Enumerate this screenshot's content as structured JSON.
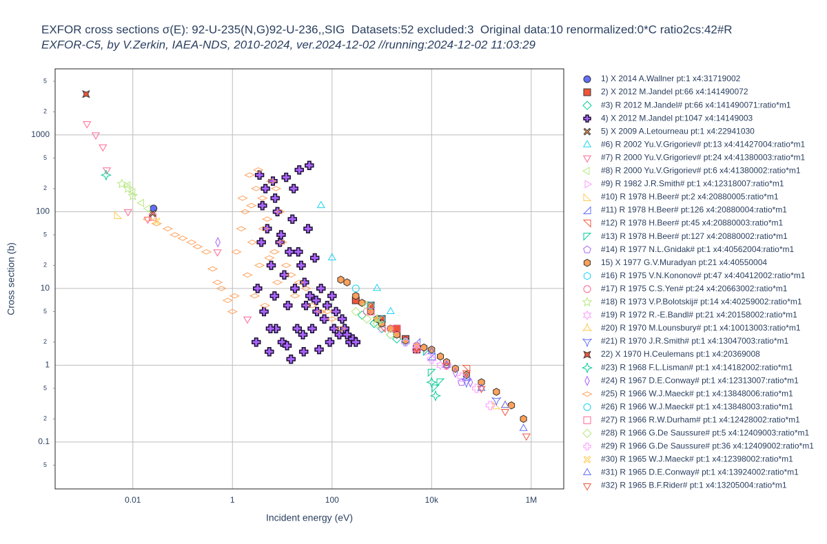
{
  "chart_data": {
    "type": "scatter",
    "title": "EXFOR cross sections σ(E): 92-U-235(N,G)92-U-236,,SIG  Datasets:52 excluded:3  Original data:10 renormalized:0*C ratio2cs:42#R",
    "subtitle": "EXFOR-C5, by V.Zerkin, IAEA-NDS, 2010-2024, ver.2024-12-02 //running:2024-12-02 11:03:29",
    "xlabel": "Incident energy (eV)",
    "ylabel": "Cross section (b)",
    "xlog": true,
    "ylog": true,
    "grid": true,
    "xlim": [
      0.000275,
      4500000
    ],
    "ylim": [
      0.0245,
      7250
    ],
    "xticks": [
      0.01,
      1,
      100,
      {
        "value": 10000,
        "label": "10k"
      },
      {
        "value": 1000000,
        "label": "1M"
      }
    ],
    "yticks": [
      1000,
      100,
      10,
      1,
      0.1
    ],
    "yminor_ticks": [
      {
        "value": 5000,
        "label": "5"
      },
      {
        "value": 2000,
        "label": "2"
      },
      {
        "value": 500,
        "label": "5"
      },
      {
        "value": 200,
        "label": "2"
      },
      {
        "value": 50,
        "label": "5"
      },
      {
        "value": 20,
        "label": "2"
      },
      {
        "value": 5,
        "label": "5"
      },
      {
        "value": 2,
        "label": "2"
      },
      {
        "value": 0.5,
        "label": "5"
      },
      {
        "value": 0.2,
        "label": "2"
      },
      {
        "value": 0.05,
        "label": "5"
      }
    ],
    "series": [
      {
        "name": "1) X 2014 A.Wallner pt:1 x4:31719002",
        "color": "#636efa",
        "symbol": "circle",
        "filled": true,
        "x": [
          0.026
        ],
        "y": [
          110
        ]
      },
      {
        "name": "2) X 2012 M.Jandel pt:66 x4:141490072",
        "color": "#ef553b",
        "symbol": "square",
        "filled": true,
        "x": [
          300,
          600,
          1000,
          2000,
          3000,
          5000
        ],
        "y": [
          7,
          6,
          4,
          3,
          2.2,
          1.6
        ]
      },
      {
        "name": "#3) R 2012 M.Jandel# pt:66 x4:141490071:ratio*m1",
        "color": "#00cc96",
        "symbol": "diamond",
        "filled": false,
        "x": [
          400,
          700,
          1000,
          1500,
          2000
        ],
        "y": [
          4.5,
          3.5,
          3,
          2.5,
          2.2
        ]
      },
      {
        "name": "4) X 2012 M.Jandel pt:1047 x4:14149003",
        "color": "#ab63fa",
        "symbol": "cross",
        "filled": true,
        "x": [
          3,
          3.2,
          3.5,
          4,
          4.3,
          5,
          5.5,
          6,
          6.5,
          7,
          7.5,
          8,
          9,
          10,
          11,
          12,
          13,
          14,
          15,
          16,
          18,
          20,
          22,
          24,
          26,
          28,
          30,
          33,
          36,
          40,
          45,
          50,
          55,
          60,
          70,
          80,
          90,
          100,
          110,
          120,
          140,
          160,
          180,
          200,
          230,
          260,
          300,
          3.8,
          4.6,
          5.8,
          7.2,
          9.5,
          12.5,
          17,
          21,
          27,
          35,
          48
        ],
        "y": [
          2,
          10,
          300,
          120,
          5,
          60,
          1.5,
          20,
          250,
          8,
          3,
          100,
          40,
          2,
          15,
          280,
          6,
          30,
          1.2,
          80,
          10,
          3,
          350,
          20,
          2.5,
          12,
          6,
          60,
          8,
          3,
          25,
          5,
          1.6,
          10,
          4,
          6,
          2,
          8,
          3,
          5,
          2.5,
          4,
          3,
          2.5,
          2,
          2.2,
          2,
          40,
          200,
          3,
          150,
          50,
          1.8,
          200,
          30,
          1.5,
          400,
          7
        ]
      },
      {
        "name": "5) X 2009 A.Letourneau pt:1 x4:22941030",
        "color": "#ffa15a",
        "symbol": "x",
        "filled": true,
        "x": [
          0.025
        ],
        "y": [
          95
        ]
      },
      {
        "name": "#6) R 2002 Yu.V.Grigoriev# pt:13 x4:41427004:ratio*m1",
        "color": "#19d3f3",
        "symbol": "triangle-up",
        "filled": false,
        "x": [
          60,
          100,
          800,
          1500
        ],
        "y": [
          120,
          25,
          10,
          5
        ]
      },
      {
        "name": "#7) R 2000 Yu.V.Grigoriev# pt:24 x4:41380003:ratio*m1",
        "color": "#ff6692",
        "symbol": "triangle-down",
        "filled": false,
        "x": [
          0.0012,
          0.0018,
          0.0025,
          0.003,
          0.008,
          0.02,
          0.5,
          2
        ],
        "y": [
          1400,
          1000,
          700,
          350,
          100,
          80,
          30,
          4
        ]
      },
      {
        "name": "#8) R 2000 Yu.V.Grigoriev# pt:6 x4:41380002:ratio*m1",
        "color": "#b6e880",
        "symbol": "triangle-left",
        "filled": false,
        "x": [
          0.008,
          0.01,
          0.015,
          0.02
        ],
        "y": [
          220,
          180,
          130,
          110
        ]
      },
      {
        "name": "#9) R 1982 J.R.Smith# pt:1 x4:12318007:ratio*m1",
        "color": "#ff97ff",
        "symbol": "triangle-right",
        "filled": false,
        "x": [
          1000,
          3000,
          8000
        ],
        "y": [
          3,
          2,
          1.5
        ]
      },
      {
        "name": "#10) R 1978 H.Beer# pt:2 x4:20880005:ratio*m1",
        "color": "#fecb52",
        "symbol": "triangle-sw",
        "filled": false,
        "x": [
          0.005,
          200000
        ],
        "y": [
          90,
          0.3
        ]
      },
      {
        "name": "#11) R 1978 H.Beer# pt:126 x4:20880004:ratio*m1",
        "color": "#636efa",
        "symbol": "triangle-se",
        "filled": false,
        "x": [
          5000,
          10000
        ],
        "y": [
          2,
          1.3
        ]
      },
      {
        "name": "#12) R 1978 H.Beer# pt:45 x4:20880003:ratio*m1",
        "color": "#ef553b",
        "symbol": "triangle-ne",
        "filled": false,
        "x": [
          1000,
          2000,
          50000
        ],
        "y": [
          3,
          2.5,
          0.9
        ]
      },
      {
        "name": "#13) R 1978 H.Beer# pt:127 x4:20880002:ratio*m1",
        "color": "#00cc96",
        "symbol": "triangle-nw",
        "filled": false,
        "x": [
          8000,
          10000,
          12000,
          15000
        ],
        "y": [
          1.5,
          0.8,
          0.5,
          0.6
        ]
      },
      {
        "name": "#14) R 1977 N.L.Gnidak# pt:1 x4:40562004:ratio*m1",
        "color": "#ab63fa",
        "symbol": "pentagon",
        "filled": false,
        "x": [
          20000,
          40000
        ],
        "y": [
          1,
          0.6
        ]
      },
      {
        "name": "15) X 1977 G.V.Muradyan pt:21 x4:40550004",
        "color": "#ffa15a",
        "symbol": "hexagon",
        "filled": true,
        "x": [
          150,
          200,
          300,
          400,
          600,
          800,
          1000,
          1500,
          2000,
          3000,
          5000,
          7000,
          10000,
          15000,
          20000,
          30000,
          50000,
          100000,
          200000,
          400000,
          700000
        ],
        "y": [
          13,
          12,
          8,
          6.5,
          5,
          4,
          3.5,
          3,
          2.5,
          2.1,
          1.8,
          1.7,
          1.6,
          1.3,
          1.1,
          0.9,
          0.75,
          0.6,
          0.45,
          0.3,
          0.2
        ]
      },
      {
        "name": "#16) R 1975 V.N.Kononov# pt:47 x4:40412002:ratio*m1",
        "color": "#19d3f3",
        "symbol": "hexagon",
        "filled": false,
        "x": [
          1000,
          3000
        ],
        "y": [
          4,
          2
        ]
      },
      {
        "name": "#17) R 1975 C.S.Yen# pt:24 x4:20663002:ratio*m1",
        "color": "#ff6692",
        "symbol": "circle",
        "filled": false,
        "x": [
          500,
          1500
        ],
        "y": [
          5,
          3
        ]
      },
      {
        "name": "#18) R 1973 V.P.Bolotskij# pt:14 x4:40259002:ratio*m1",
        "color": "#b6e880",
        "symbol": "star",
        "filled": false,
        "x": [
          0.006,
          0.008,
          0.01,
          500,
          800
        ],
        "y": [
          230,
          200,
          160,
          6,
          4
        ]
      },
      {
        "name": "#19) R 1972 R.-E.Bandl# pt:21 x4:20158002:ratio*m1",
        "color": "#ff97ff",
        "symbol": "hexagram",
        "filled": false,
        "x": [
          5000,
          15000
        ],
        "y": [
          1.8,
          1
        ]
      },
      {
        "name": "#20) R 1970 M.Lounsbury# pt:1 x4:10013003:ratio*m1",
        "color": "#fecb52",
        "symbol": "star-triangle-up",
        "filled": false,
        "x": [
          300000
        ],
        "y": [
          0.3
        ]
      },
      {
        "name": "#21) R 1970 J.R.Smith# pt:1 x4:13047003:ratio*m1",
        "color": "#636efa",
        "symbol": "star-triangle-down",
        "filled": false,
        "x": [
          50000,
          200000
        ],
        "y": [
          0.6,
          0.35
        ]
      },
      {
        "name": "22) X 1970 H.Ceulemans pt:1 x4:20369008",
        "color": "#ef553b",
        "symbol": "star-square",
        "filled": true,
        "x": [
          0.00115
        ],
        "y": [
          3400
        ]
      },
      {
        "name": "#23) R 1968 F.L.Lisman# pt:1 x4:14182002:ratio*m1",
        "color": "#00cc96",
        "symbol": "star-diamond",
        "filled": false,
        "x": [
          0.0029,
          10000,
          12000
        ],
        "y": [
          300,
          0.6,
          0.4
        ]
      },
      {
        "name": "#24) R 1967 D.E.Conway# pt:1 x4:12313007:ratio*m1",
        "color": "#ab63fa",
        "symbol": "diamond-tall",
        "filled": false,
        "x": [
          0.51,
          30000,
          60000
        ],
        "y": [
          40,
          0.8,
          0.6
        ]
      },
      {
        "name": "#25) R 1966 W.J.Maeck# pt:1 x4:13848006:ratio*m1",
        "color": "#ffa15a",
        "symbol": "diamond-wide",
        "filled": false,
        "x": [
          0.02,
          0.03,
          0.05,
          0.07,
          0.1,
          0.15,
          0.2,
          0.3,
          0.4,
          0.5,
          0.6,
          0.8,
          1,
          1.2,
          1.5,
          1.8,
          2,
          2.2,
          2.5,
          2.8,
          3,
          3.5,
          4,
          4.5,
          5,
          6,
          7,
          8,
          9,
          10,
          12,
          15,
          18,
          22,
          30,
          40,
          60,
          80,
          100,
          150,
          1.1,
          1.6,
          2.4,
          3.3,
          4.2,
          5.5,
          7.5
        ],
        "y": [
          80,
          70,
          60,
          50,
          45,
          40,
          35,
          30,
          18,
          12,
          10,
          7,
          5,
          30,
          60,
          100,
          15,
          300,
          40,
          8,
          200,
          20,
          150,
          6,
          80,
          250,
          30,
          12,
          100,
          40,
          20,
          15,
          8,
          12,
          10,
          6,
          5,
          5,
          4,
          3,
          8,
          150,
          120,
          350,
          60,
          25,
          200
        ]
      },
      {
        "name": "#26) R 1966 W.J.Maeck# pt:1 x4:13848003:ratio*m1",
        "color": "#19d3f3",
        "symbol": "circle",
        "filled": false,
        "x": [
          300,
          600
        ],
        "y": [
          10,
          6
        ]
      },
      {
        "name": "#27) R 1966 R.W.Durham# pt:1 x4:12428002:ratio*m1",
        "color": "#ff6692",
        "symbol": "square",
        "filled": false,
        "x": [
          0.025,
          600,
          2000
        ],
        "y": [
          85,
          5,
          3
        ]
      },
      {
        "name": "#28) R 1966 G.De Saussure# pt:5 x4:12409003:ratio*m1",
        "color": "#b6e880",
        "symbol": "diamond",
        "filled": false,
        "x": [
          300,
          500,
          800,
          1500
        ],
        "y": [
          5,
          4,
          3.5,
          2.5
        ]
      },
      {
        "name": "#29) R 1966 G.De Saussure# pt:36 x4:12409002:ratio*m1",
        "color": "#ff97ff",
        "symbol": "cross",
        "filled": false,
        "x": [
          3000,
          5000,
          10000,
          20000,
          40000,
          80000,
          150000
        ],
        "y": [
          2,
          1.6,
          1.2,
          1,
          0.7,
          0.5,
          0.3
        ]
      },
      {
        "name": "#30) R 1965 W.J.Maeck# pt:1 x4:12398002:ratio*m1",
        "color": "#fecb52",
        "symbol": "x",
        "filled": false,
        "x": [
          0.03
        ],
        "y": [
          75
        ]
      },
      {
        "name": "#31) R 1965 D.E.Conway# pt:1 x4:13924002:ratio*m1",
        "color": "#636efa",
        "symbol": "triangle-up",
        "filled": false,
        "x": [
          10000,
          20000,
          50000,
          100000,
          300000,
          700000
        ],
        "y": [
          1.5,
          1,
          0.7,
          0.5,
          0.3,
          0.15
        ]
      },
      {
        "name": "#32) R 1965 B.F.Rider# pt:1 x4:13205004:ratio*m1",
        "color": "#ef553b",
        "symbol": "triangle-down",
        "filled": false,
        "x": [
          20000,
          50000,
          100000,
          300000,
          800000
        ],
        "y": [
          1,
          0.8,
          0.5,
          0.25,
          0.12
        ]
      }
    ]
  }
}
